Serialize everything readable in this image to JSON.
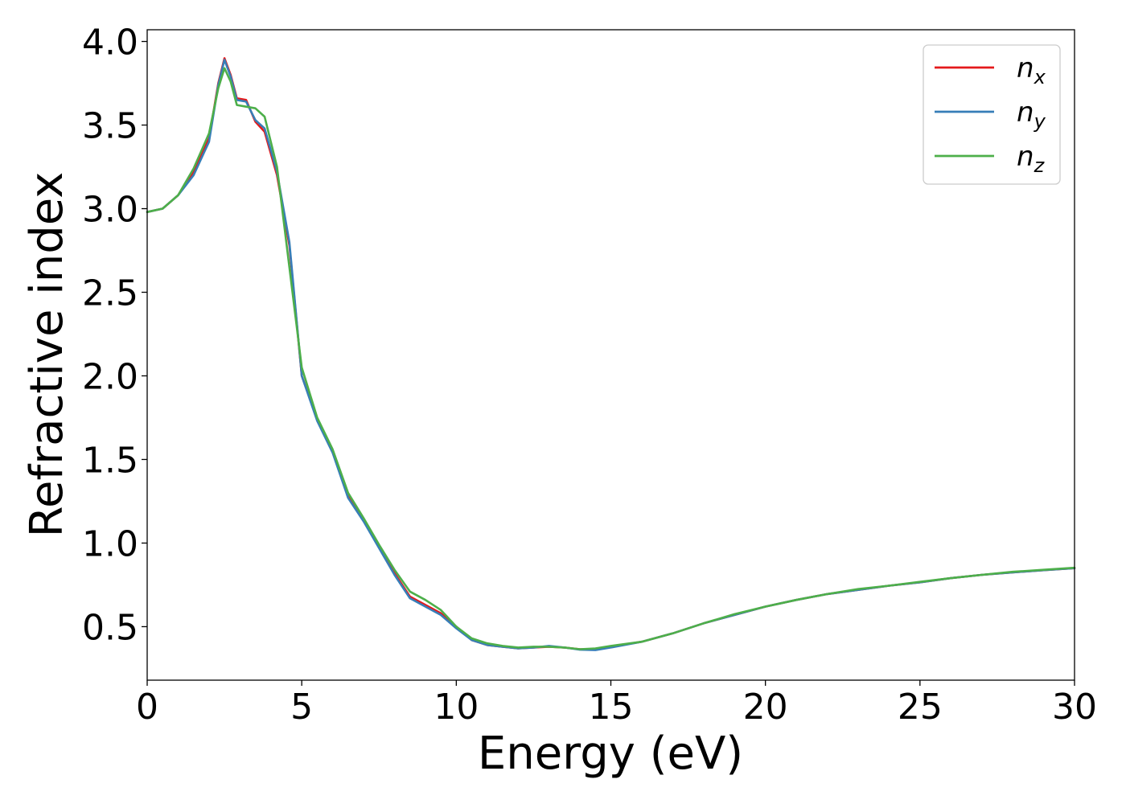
{
  "chart_data": {
    "type": "line",
    "title": "",
    "xlabel": "Energy (eV)",
    "ylabel": "Refractive index",
    "xlim": [
      0,
      30
    ],
    "ylim": [
      0.18,
      4.07
    ],
    "xticks": [
      "0",
      "5",
      "10",
      "15",
      "20",
      "25",
      "30"
    ],
    "yticks": [
      "0.5",
      "1.0",
      "1.5",
      "2.0",
      "2.5",
      "3.0",
      "3.5",
      "4.0"
    ],
    "grid": false,
    "legend": {
      "position": "top-right",
      "entries": [
        {
          "base": "n",
          "sub": "x"
        },
        {
          "base": "n",
          "sub": "y"
        },
        {
          "base": "n",
          "sub": "z"
        }
      ]
    },
    "series": [
      {
        "name": "n_x",
        "color": "#e41a1c",
        "points": [
          [
            0,
            2.98
          ],
          [
            0.5,
            3.0
          ],
          [
            1.0,
            3.08
          ],
          [
            1.5,
            3.22
          ],
          [
            2.0,
            3.42
          ],
          [
            2.3,
            3.75
          ],
          [
            2.5,
            3.9
          ],
          [
            2.7,
            3.8
          ],
          [
            2.9,
            3.66
          ],
          [
            3.2,
            3.65
          ],
          [
            3.5,
            3.52
          ],
          [
            3.8,
            3.46
          ],
          [
            4.2,
            3.2
          ],
          [
            4.6,
            2.78
          ],
          [
            5.0,
            2.0
          ],
          [
            5.5,
            1.74
          ],
          [
            6.0,
            1.55
          ],
          [
            6.5,
            1.28
          ],
          [
            7.0,
            1.14
          ],
          [
            7.5,
            0.98
          ],
          [
            8.0,
            0.82
          ],
          [
            8.5,
            0.68
          ],
          [
            9.0,
            0.63
          ],
          [
            9.5,
            0.58
          ],
          [
            10.0,
            0.5
          ],
          [
            10.5,
            0.42
          ],
          [
            11.0,
            0.39
          ],
          [
            11.5,
            0.38
          ],
          [
            12.0,
            0.37
          ],
          [
            12.5,
            0.375
          ],
          [
            13.0,
            0.38
          ],
          [
            13.5,
            0.375
          ],
          [
            14.0,
            0.365
          ],
          [
            14.5,
            0.365
          ],
          [
            15.0,
            0.38
          ],
          [
            16.0,
            0.41
          ],
          [
            17.0,
            0.46
          ],
          [
            18.0,
            0.52
          ],
          [
            19.0,
            0.57
          ],
          [
            20.0,
            0.62
          ],
          [
            21.0,
            0.66
          ],
          [
            22.0,
            0.695
          ],
          [
            23.0,
            0.72
          ],
          [
            24.0,
            0.745
          ],
          [
            25.0,
            0.765
          ],
          [
            26.0,
            0.79
          ],
          [
            27.0,
            0.81
          ],
          [
            28.0,
            0.825
          ],
          [
            29.0,
            0.838
          ],
          [
            30.0,
            0.85
          ]
        ]
      },
      {
        "name": "n_y",
        "color": "#377eb8",
        "points": [
          [
            0,
            2.98
          ],
          [
            0.5,
            3.0
          ],
          [
            1.0,
            3.08
          ],
          [
            1.5,
            3.2
          ],
          [
            2.0,
            3.4
          ],
          [
            2.3,
            3.74
          ],
          [
            2.5,
            3.89
          ],
          [
            2.7,
            3.79
          ],
          [
            2.9,
            3.65
          ],
          [
            3.2,
            3.64
          ],
          [
            3.5,
            3.53
          ],
          [
            3.8,
            3.48
          ],
          [
            4.2,
            3.22
          ],
          [
            4.6,
            2.8
          ],
          [
            5.0,
            2.0
          ],
          [
            5.5,
            1.73
          ],
          [
            6.0,
            1.54
          ],
          [
            6.5,
            1.27
          ],
          [
            7.0,
            1.13
          ],
          [
            7.5,
            0.97
          ],
          [
            8.0,
            0.81
          ],
          [
            8.5,
            0.67
          ],
          [
            9.0,
            0.62
          ],
          [
            9.5,
            0.57
          ],
          [
            10.0,
            0.49
          ],
          [
            10.5,
            0.42
          ],
          [
            11.0,
            0.39
          ],
          [
            11.5,
            0.38
          ],
          [
            12.0,
            0.37
          ],
          [
            12.5,
            0.375
          ],
          [
            13.0,
            0.385
          ],
          [
            13.5,
            0.375
          ],
          [
            14.0,
            0.362
          ],
          [
            14.5,
            0.36
          ],
          [
            15.0,
            0.375
          ],
          [
            16.0,
            0.41
          ],
          [
            17.0,
            0.46
          ],
          [
            18.0,
            0.52
          ],
          [
            19.0,
            0.57
          ],
          [
            20.0,
            0.62
          ],
          [
            21.0,
            0.66
          ],
          [
            22.0,
            0.695
          ],
          [
            23.0,
            0.72
          ],
          [
            24.0,
            0.745
          ],
          [
            25.0,
            0.765
          ],
          [
            26.0,
            0.79
          ],
          [
            27.0,
            0.81
          ],
          [
            28.0,
            0.825
          ],
          [
            29.0,
            0.838
          ],
          [
            30.0,
            0.85
          ]
        ]
      },
      {
        "name": "n_z",
        "color": "#4daf4a",
        "points": [
          [
            0,
            2.98
          ],
          [
            0.5,
            3.0
          ],
          [
            1.0,
            3.08
          ],
          [
            1.5,
            3.24
          ],
          [
            2.0,
            3.45
          ],
          [
            2.3,
            3.72
          ],
          [
            2.5,
            3.84
          ],
          [
            2.7,
            3.76
          ],
          [
            2.9,
            3.62
          ],
          [
            3.2,
            3.61
          ],
          [
            3.5,
            3.6
          ],
          [
            3.8,
            3.55
          ],
          [
            4.2,
            3.25
          ],
          [
            4.6,
            2.65
          ],
          [
            5.0,
            2.05
          ],
          [
            5.5,
            1.75
          ],
          [
            6.0,
            1.56
          ],
          [
            6.5,
            1.3
          ],
          [
            7.0,
            1.15
          ],
          [
            7.5,
            0.99
          ],
          [
            8.0,
            0.84
          ],
          [
            8.5,
            0.71
          ],
          [
            9.0,
            0.66
          ],
          [
            9.5,
            0.6
          ],
          [
            10.0,
            0.5
          ],
          [
            10.5,
            0.43
          ],
          [
            11.0,
            0.4
          ],
          [
            11.5,
            0.385
          ],
          [
            12.0,
            0.375
          ],
          [
            12.5,
            0.38
          ],
          [
            13.0,
            0.38
          ],
          [
            13.5,
            0.375
          ],
          [
            14.0,
            0.365
          ],
          [
            14.5,
            0.37
          ],
          [
            15.0,
            0.385
          ],
          [
            16.0,
            0.41
          ],
          [
            17.0,
            0.46
          ],
          [
            18.0,
            0.52
          ],
          [
            19.0,
            0.575
          ],
          [
            20.0,
            0.62
          ],
          [
            21.0,
            0.66
          ],
          [
            22.0,
            0.695
          ],
          [
            23.0,
            0.725
          ],
          [
            24.0,
            0.745
          ],
          [
            25.0,
            0.768
          ],
          [
            26.0,
            0.79
          ],
          [
            27.0,
            0.81
          ],
          [
            28.0,
            0.828
          ],
          [
            29.0,
            0.84
          ],
          [
            30.0,
            0.852
          ]
        ]
      }
    ]
  }
}
